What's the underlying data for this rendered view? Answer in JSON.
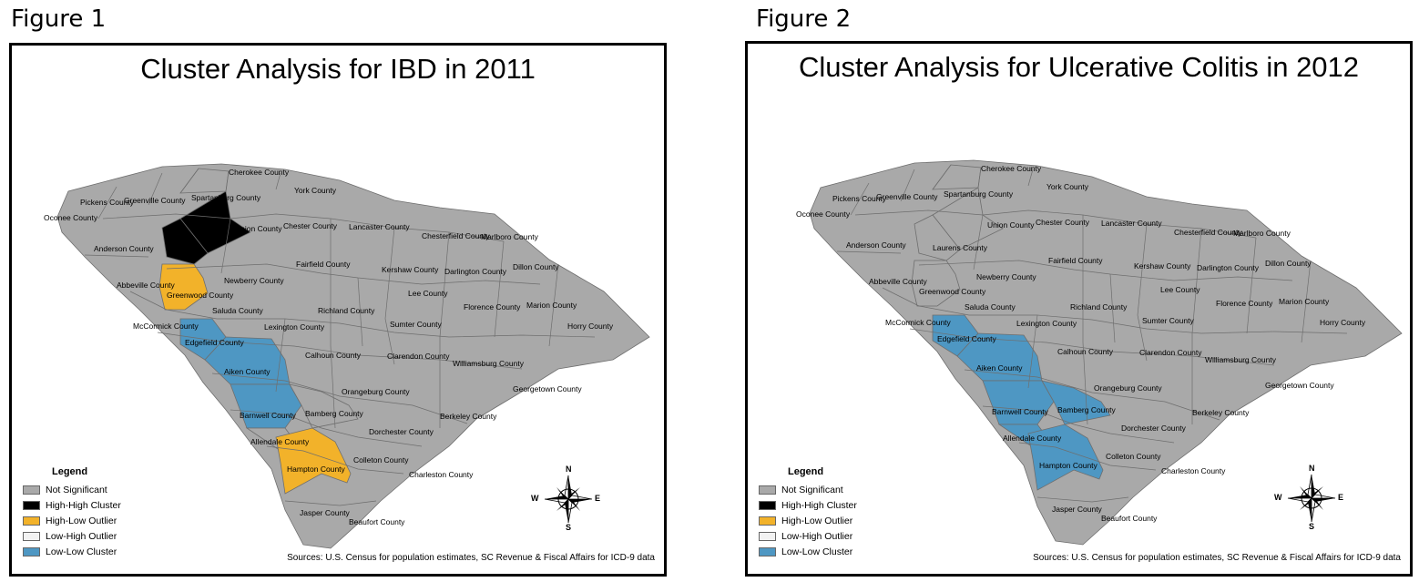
{
  "figures": [
    {
      "label": "Figure 1",
      "title": "Cluster Analysis for IBD in 2011",
      "fills": {
        "spartanburg": "not_significant",
        "cherokee": "not_significant",
        "union": "high_high",
        "laurens": "high_high",
        "greenwood": "high_low",
        "edgefield": "low_low",
        "aiken": "low_low",
        "barnwell": "low_low",
        "bamberg": "not_significant",
        "allendale": "not_significant",
        "hampton": "high_low"
      },
      "county_labels": {
        "cherokee": "Cherokee County",
        "york": "York County",
        "pickens": "Pickens County",
        "greenville": "Greenville County",
        "spartanburg": "Spartanburg County",
        "oconee": "Oconee County",
        "union": "Union County",
        "chester": "Chester County",
        "lancaster": "Lancaster County",
        "chesterfield": "Chesterfield County",
        "marlboro": "Marlboro County",
        "anderson": "Anderson County",
        "laurens": "",
        "fairfield": "Fairfield County",
        "kershaw": "Kershaw County",
        "darlington": "Darlington County",
        "dillon": "Dillon County",
        "newberry": "Newberry County",
        "abbeville": "Abbeville County",
        "greenwood": "Greenwood County",
        "lee": "Lee County",
        "saluda": "Saluda County",
        "richland": "Richland County",
        "florence": "Florence County",
        "marion": "Marion County",
        "mccormick": "McCormick County",
        "lexington": "Lexington County",
        "sumter": "Sumter County",
        "horry": "Horry County",
        "edgefield": "Edgefield County",
        "calhoun": "Calhoun County",
        "clarendon": "Clarendon County",
        "williamsburg": "Williamsburg County",
        "aiken": "Aiken County",
        "orangeburg": "Orangeburg County",
        "georgetown": "Georgetown County",
        "barnwell": "Barnwell County",
        "bamberg": "Bamberg County",
        "berkeley": "Berkeley County",
        "dorchester": "Dorchester County",
        "allendale": "Allendale County",
        "colleton": "Colleton County",
        "hampton": "Hampton County",
        "charleston": "Charleston County",
        "jasper": "Jasper County",
        "beaufort": "Beaufort County"
      },
      "legend_title": "Legend",
      "sources": "Sources: U.S. Census for population estimates, SC Revenue & Fiscal Affairs for ICD-9 data"
    },
    {
      "label": "Figure 2",
      "title": "Cluster Analysis for Ulcerative Colitis in 2012",
      "fills": {
        "spartanburg": "not_significant",
        "cherokee": "not_significant",
        "union": "not_significant",
        "laurens": "not_significant",
        "greenwood": "not_significant",
        "edgefield": "low_low",
        "aiken": "low_low",
        "barnwell": "low_low",
        "bamberg": "low_low",
        "allendale": "low_low",
        "hampton": "low_low"
      },
      "county_labels": {
        "cherokee": "Cherokee County",
        "york": "York County",
        "pickens": "Pickens County",
        "greenville": "Greenville County",
        "spartanburg": "Spartanburg County",
        "oconee": "Oconee County",
        "union": "Union County",
        "chester": "Chester County",
        "lancaster": "Lancaster County",
        "chesterfield": "Chesterfield County",
        "marlboro": "Marlboro County",
        "anderson": "Anderson County",
        "laurens": "Laurens County",
        "fairfield": "Fairfield County",
        "kershaw": "Kershaw County",
        "darlington": "Darlington County",
        "dillon": "Dillon County",
        "newberry": "Newberry County",
        "abbeville": "Abbeville County",
        "greenwood": "Greenwood County",
        "lee": "Lee County",
        "saluda": "Saluda County",
        "richland": "Richland County",
        "florence": "Florence County",
        "marion": "Marion County",
        "mccormick": "McCormick County",
        "lexington": "Lexington County",
        "sumter": "Sumter County",
        "horry": "Horry County",
        "edgefield": "Edgefield County",
        "calhoun": "Calhoun County",
        "clarendon": "Clarendon County",
        "williamsburg": "Williamsburg County",
        "aiken": "Aiken County",
        "orangeburg": "Orangeburg County",
        "georgetown": "Georgetown County",
        "barnwell": "Barnwell County",
        "bamberg": "Bamberg County",
        "berkeley": "Berkeley County",
        "dorchester": "Dorchester County",
        "allendale": "Allendale County",
        "colleton": "Colleton County",
        "hampton": "Hampton County",
        "charleston": "Charleston County",
        "jasper": "Jasper County",
        "beaufort": "Beaufort County"
      },
      "legend_title": "Legend",
      "sources": "Sources: U.S. Census for population estimates, SC Revenue & Fiscal Affairs for ICD-9 data"
    }
  ],
  "legend_items": [
    {
      "key": "not_significant",
      "label": "Not Significant"
    },
    {
      "key": "high_high",
      "label": "High-High Cluster"
    },
    {
      "key": "high_low",
      "label": "High-Low Outlier"
    },
    {
      "key": "low_high",
      "label": "Low-High Outlier"
    },
    {
      "key": "low_low",
      "label": "Low-Low Cluster"
    }
  ],
  "category_colors": {
    "not_significant": "#a9a9a9",
    "high_high": "#000000",
    "high_low": "#f2b22a",
    "low_high": "#f2f2f2",
    "low_low": "#4e97c3"
  },
  "compass": {
    "n": "N",
    "s": "S",
    "e": "E",
    "w": "W"
  }
}
